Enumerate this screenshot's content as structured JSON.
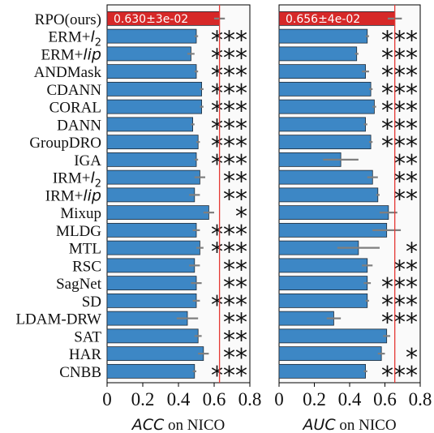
{
  "chart_data": [
    {
      "type": "bar",
      "orientation": "horizontal",
      "xlabel": {
        "metric": "ACC",
        "suffix": " on NICO"
      },
      "xlim": [
        0,
        0.8
      ],
      "xticks": [
        "0",
        "0.2",
        "0.4",
        "0.6",
        "0.8"
      ],
      "reference_value": 0.63,
      "highlight_label": "0.630±3e-02",
      "categories": [
        "RPO(ours)",
        "ERM+l2",
        "ERM+lip",
        "ANDMask",
        "CDANN",
        "CORAL",
        "DANN",
        "GroupDRO",
        "IGA",
        "IRM+l2",
        "IRM+lip",
        "Mixup",
        "MLDG",
        "MTL",
        "RSC",
        "SagNet",
        "SD",
        "LDAM-DRW",
        "SAT",
        "HAR",
        "CNBB"
      ],
      "values": [
        0.63,
        0.5,
        0.47,
        0.5,
        0.53,
        0.53,
        0.48,
        0.51,
        0.5,
        0.52,
        0.49,
        0.57,
        0.5,
        0.52,
        0.49,
        0.5,
        0.5,
        0.45,
        0.51,
        0.54,
        0.49
      ],
      "errors": [
        0.03,
        0.01,
        0.02,
        0.01,
        0.01,
        0.01,
        0.01,
        0.01,
        0.01,
        0.03,
        0.03,
        0.03,
        0.02,
        0.02,
        0.03,
        0.03,
        0.02,
        0.06,
        0.02,
        0.03,
        0.01
      ],
      "significance": [
        "",
        "***",
        "***",
        "***",
        "***",
        "***",
        "***",
        "***",
        "***",
        "**",
        "**",
        "*",
        "***",
        "***",
        "**",
        "**",
        "***",
        "**",
        "**",
        "**",
        "***"
      ]
    },
    {
      "type": "bar",
      "orientation": "horizontal",
      "xlabel": {
        "metric": "AUC",
        "suffix": " on NICO"
      },
      "xlim": [
        0,
        0.8
      ],
      "xticks": [
        "0",
        "0.2",
        "0.4",
        "0.6",
        "0.8"
      ],
      "reference_value": 0.656,
      "highlight_label": "0.656±4e-02",
      "categories": [
        "RPO(ours)",
        "ERM+l2",
        "ERM+lip",
        "ANDMask",
        "CDANN",
        "CORAL",
        "DANN",
        "GroupDRO",
        "IGA",
        "IRM+l2",
        "IRM+lip",
        "Mixup",
        "MLDG",
        "MTL",
        "RSC",
        "SagNet",
        "SD",
        "LDAM-DRW",
        "SAT",
        "HAR",
        "CNBB"
      ],
      "values": [
        0.656,
        0.5,
        0.44,
        0.49,
        0.52,
        0.54,
        0.49,
        0.52,
        0.35,
        0.53,
        0.56,
        0.62,
        0.61,
        0.45,
        0.5,
        0.5,
        0.5,
        0.31,
        0.61,
        0.58,
        0.49
      ],
      "errors": [
        0.04,
        0.01,
        0.01,
        0.02,
        0.01,
        0.01,
        0.01,
        0.01,
        0.1,
        0.03,
        0.01,
        0.05,
        0.08,
        0.12,
        0.03,
        0.02,
        0.01,
        0.04,
        0.02,
        0.02,
        0.01
      ],
      "significance": [
        "",
        "***",
        "***",
        "***",
        "***",
        "***",
        "***",
        "***",
        "**",
        "**",
        "**",
        "",
        "",
        "*",
        "**",
        "***",
        "***",
        "***",
        "",
        "*",
        "***"
      ]
    }
  ],
  "colors": {
    "bar": "#3d87c5",
    "bar_edge": "#1f2a36",
    "highlight_bar": "#d62828",
    "reference_line": "#e53935",
    "error_bar": "#7f7f7f",
    "panel_background": "#fafafa"
  }
}
